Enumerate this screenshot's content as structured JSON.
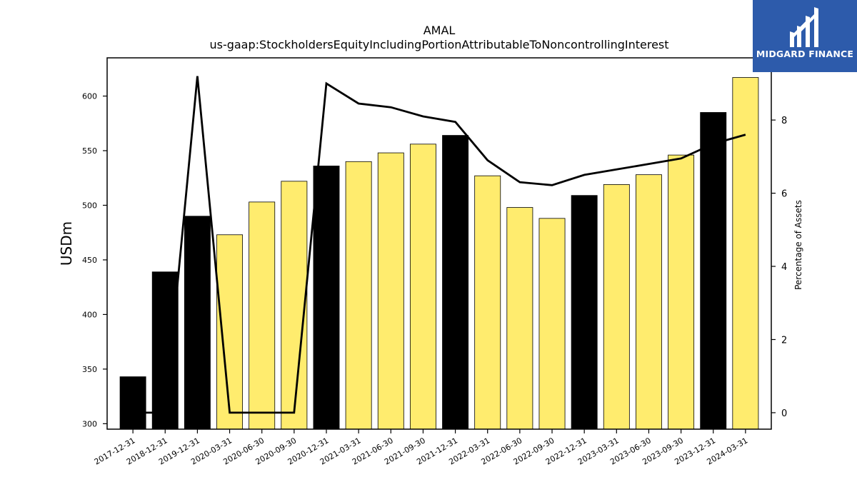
{
  "chart_data": {
    "type": "bar",
    "title": "AMAL",
    "subtitle": "us-gaap:StockholdersEquityIncludingPortionAttributableToNoncontrollingInterest",
    "ylabel": "USDm",
    "y2label": "Percentage of Assets",
    "ylim": [
      295,
      635
    ],
    "y2lim": [
      -0.45,
      9.7
    ],
    "yticks": [
      300,
      350,
      400,
      450,
      500,
      550,
      600
    ],
    "y2ticks": [
      0,
      2,
      4,
      6,
      8
    ],
    "categories": [
      "2017-12-31",
      "2018-12-31",
      "2019-12-31",
      "2020-03-31",
      "2020-06-30",
      "2020-09-30",
      "2020-12-31",
      "2021-03-31",
      "2021-06-30",
      "2021-09-30",
      "2021-12-31",
      "2022-03-31",
      "2022-06-30",
      "2022-09-30",
      "2022-12-31",
      "2023-03-31",
      "2023-06-30",
      "2023-09-30",
      "2023-12-31",
      "2024-03-31"
    ],
    "series": [
      {
        "type": "bar",
        "values": [
          343,
          439,
          490,
          473,
          503,
          522,
          536,
          540,
          548,
          556,
          564,
          527,
          498,
          488,
          509,
          519,
          528,
          546,
          585,
          617
        ]
      },
      {
        "type": "line",
        "axis": "right",
        "values": [
          0.0,
          0.0,
          9.2,
          0.0,
          0.0,
          0.0,
          9.0,
          8.45,
          8.35,
          8.1,
          7.95,
          6.9,
          6.3,
          6.22,
          6.5,
          6.65,
          6.8,
          6.95,
          7.35,
          7.6
        ]
      }
    ],
    "bar_colors": [
      "#000000",
      "#000000",
      "#000000",
      "#ffec6e",
      "#ffec6e",
      "#ffec6e",
      "#000000",
      "#ffec6e",
      "#ffec6e",
      "#ffec6e",
      "#000000",
      "#ffec6e",
      "#ffec6e",
      "#ffec6e",
      "#000000",
      "#ffec6e",
      "#ffec6e",
      "#ffec6e",
      "#000000",
      "#ffec6e"
    ],
    "line_color": "#000000",
    "grid": false
  },
  "logo": {
    "text": "MIDGARD FINANCE",
    "background": "#2d5bab"
  }
}
